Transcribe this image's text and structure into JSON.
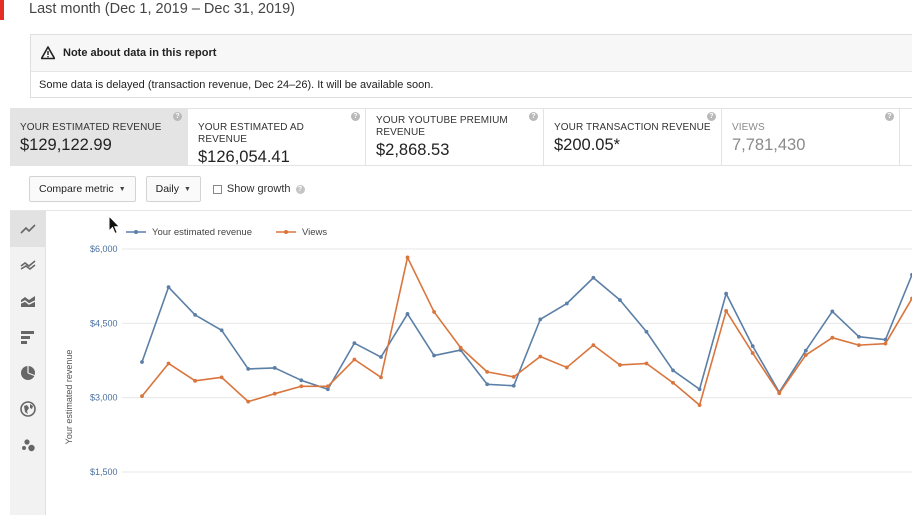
{
  "header": {
    "date_range": "Last month (Dec 1, 2019 – Dec 31, 2019)"
  },
  "note": {
    "title": "Note about data in this report",
    "body": "Some data is delayed (transaction revenue, Dec 24–26). It will be available soon.",
    "icon": "warning-icon"
  },
  "metrics": [
    {
      "label": "YOUR ESTIMATED REVENUE",
      "value": "$129,122.99"
    },
    {
      "label": "YOUR ESTIMATED AD REVENUE",
      "value": "$126,054.41"
    },
    {
      "label": "YOUR YOUTUBE PREMIUM REVENUE",
      "value": "$2,868.53"
    },
    {
      "label": "YOUR TRANSACTION REVENUE",
      "value": "$200.05*"
    },
    {
      "label": "VIEWS",
      "value": "7,781,430"
    }
  ],
  "toolbar": {
    "compare_metric": "Compare metric",
    "interval": "Daily",
    "show_growth": "Show growth"
  },
  "side_tools": [
    "line-chart-icon",
    "multi-line-chart-icon",
    "stacked-area-chart-icon",
    "bar-chart-icon",
    "pie-chart-icon",
    "map-icon",
    "bubble-chart-icon"
  ],
  "colors": {
    "revenue": "#5b7fa6",
    "views": "#d9753d",
    "active_metric_bg": "#e4e4e4"
  },
  "chart_data": {
    "type": "line",
    "ylabel": "Your estimated revenue",
    "yticks": [
      "$6,000",
      "$4,500",
      "$3,000",
      "$1,500"
    ],
    "ylim": [
      1500,
      6000
    ],
    "grid": true,
    "legend": "top-left",
    "series": [
      {
        "name": "Your estimated revenue",
        "color": "#5b7fa6",
        "values": [
          3720,
          5230,
          4670,
          4360,
          3580,
          3600,
          3350,
          3170,
          4100,
          3820,
          4690,
          3850,
          3960,
          3270,
          3240,
          4580,
          4900,
          5420,
          4970,
          4330,
          3550,
          3170,
          5100,
          4040,
          3110,
          3950,
          4740,
          4230,
          4170,
          5480
        ]
      },
      {
        "name": "Views",
        "color": "#d9753d",
        "values": [
          3030,
          3690,
          3340,
          3410,
          2920,
          3080,
          3230,
          3230,
          3770,
          3410,
          5830,
          4730,
          4010,
          3520,
          3420,
          3830,
          3610,
          4060,
          3660,
          3690,
          3300,
          2850,
          4750,
          3900,
          3090,
          3860,
          4210,
          4060,
          4090,
          5000
        ]
      }
    ]
  }
}
